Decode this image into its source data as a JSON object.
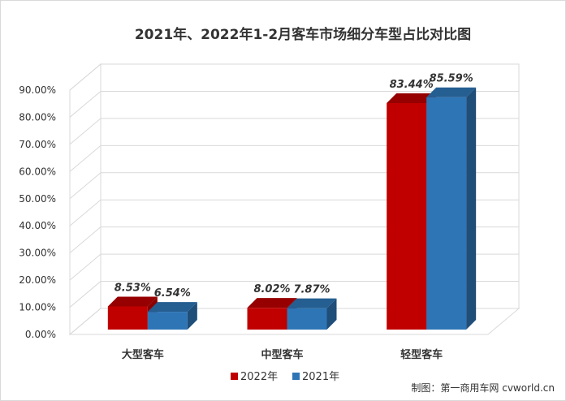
{
  "chart_data": {
    "type": "bar",
    "title": "2021年、2022年1-2月客车市场细分车型占比对比图",
    "categories": [
      "大型客车",
      "中型客车",
      "轻型客车"
    ],
    "series": [
      {
        "name": "2022年",
        "values": [
          8.53,
          8.02,
          83.44
        ],
        "labels": [
          "8.53%",
          "8.02%",
          "83.44%"
        ],
        "color": "#c00000",
        "side_color": "#8b0000",
        "top_color": "#960000"
      },
      {
        "name": "2021年",
        "values": [
          6.54,
          7.87,
          85.59
        ],
        "labels": [
          "6.54%",
          "7.87%",
          "85.59%"
        ],
        "color": "#2e75b6",
        "side_color": "#1f4e79",
        "top_color": "#255e91"
      }
    ],
    "ylim": [
      0,
      90
    ],
    "yticks": [
      0,
      10,
      20,
      30,
      40,
      50,
      60,
      70,
      80,
      90
    ],
    "ytick_labels": [
      "0.00%",
      "10.00%",
      "20.00%",
      "30.00%",
      "40.00%",
      "50.00%",
      "60.00%",
      "70.00%",
      "80.00%",
      "90.00%"
    ],
    "grid": true,
    "legend_position": "bottom",
    "three_d": true
  },
  "credit": "制图：第一商用车网 cvworld.cn"
}
